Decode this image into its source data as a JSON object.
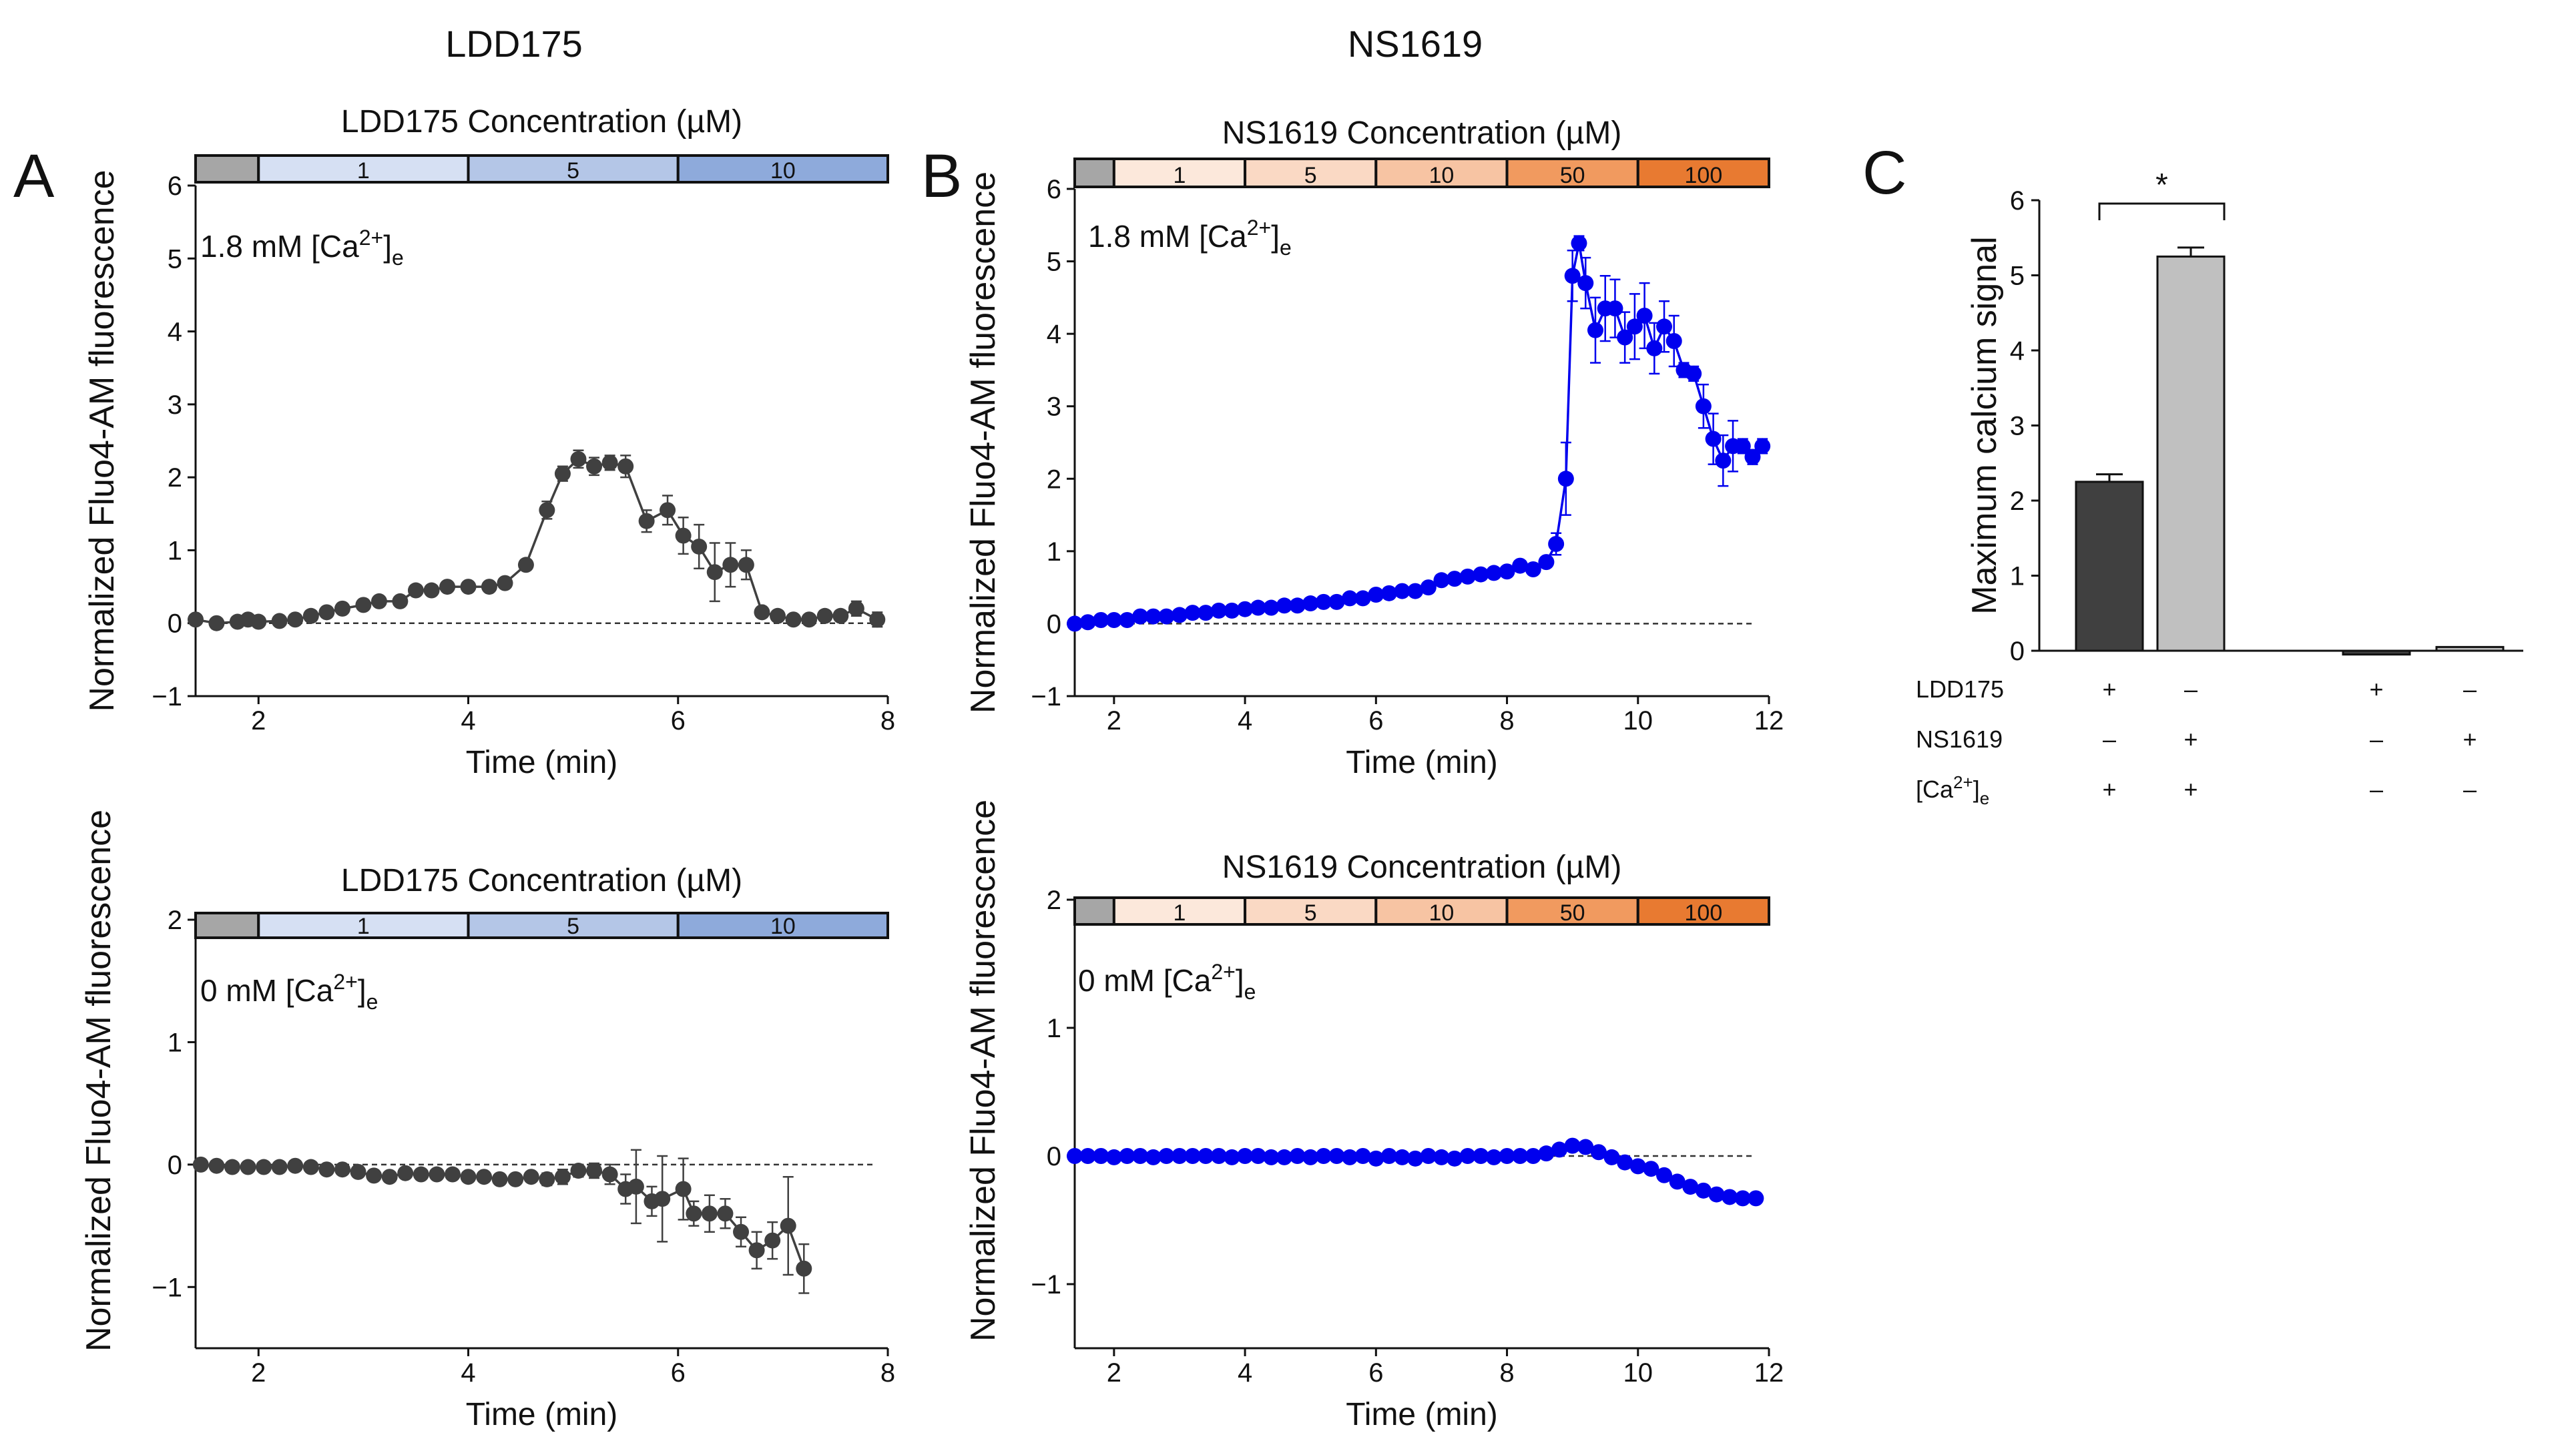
{
  "headers": {
    "ldd": "LDD175",
    "ns": "NS1619"
  },
  "letters": {
    "a": "A",
    "b": "B",
    "c": "C"
  },
  "colors": {
    "ldd": "#404040",
    "ns": "#0000ee",
    "bar_ldd": "#404040",
    "bar_ns": "#c0c0c0"
  },
  "chart_data": [
    {
      "id": "A-top",
      "type": "line",
      "title": "LDD175 Concentration (µM)",
      "xlabel": "Time (min)",
      "ylabel": "Normalized Fluo4-AM fluorescence",
      "condition": "1.8 mM [Ca²⁺]ₑ",
      "xlim": [
        1.4,
        8
      ],
      "ylim": [
        -1,
        6
      ],
      "xticks": [
        2,
        4,
        6,
        8
      ],
      "yticks": [
        -1,
        0,
        1,
        2,
        3,
        4,
        5,
        6
      ],
      "concentration_bar": {
        "segments": [
          {
            "label": "",
            "start": 1.4,
            "end": 2.0,
            "color": "#a6a6a6"
          },
          {
            "label": "1",
            "start": 2.0,
            "end": 4.0,
            "color": "#d6e0f3"
          },
          {
            "label": "5",
            "start": 4.0,
            "end": 6.0,
            "color": "#b4c6e7"
          },
          {
            "label": "10",
            "start": 6.0,
            "end": 8.0,
            "color": "#8eaadb"
          }
        ]
      },
      "series": [
        {
          "name": "LDD175",
          "color": "#404040",
          "x": [
            1.4,
            1.6,
            1.8,
            1.9,
            2.0,
            2.2,
            2.35,
            2.5,
            2.65,
            2.8,
            3.0,
            3.15,
            3.35,
            3.5,
            3.65,
            3.8,
            4.0,
            4.2,
            4.35,
            4.55,
            4.75,
            4.9,
            5.05,
            5.2,
            5.35,
            5.5,
            5.7,
            5.9,
            6.05,
            6.2,
            6.35,
            6.5,
            6.65,
            6.8,
            6.95,
            7.1,
            7.25,
            7.4,
            7.55,
            7.7,
            7.9
          ],
          "y": [
            0.05,
            0.0,
            0.02,
            0.05,
            0.02,
            0.03,
            0.05,
            0.1,
            0.15,
            0.2,
            0.25,
            0.3,
            0.3,
            0.45,
            0.45,
            0.5,
            0.5,
            0.5,
            0.55,
            0.8,
            1.55,
            2.05,
            2.25,
            2.15,
            2.2,
            2.15,
            1.4,
            1.55,
            1.2,
            1.05,
            0.7,
            0.8,
            0.8,
            0.15,
            0.1,
            0.05,
            0.05,
            0.1,
            0.1,
            0.2,
            0.05
          ],
          "err": [
            0.05,
            0.05,
            0.05,
            0.05,
            0.05,
            0.05,
            0.05,
            0.05,
            0.05,
            0.05,
            0.05,
            0.05,
            0.05,
            0.05,
            0.05,
            0.05,
            0.05,
            0.05,
            0.05,
            0.05,
            0.12,
            0.1,
            0.12,
            0.12,
            0.1,
            0.15,
            0.15,
            0.2,
            0.25,
            0.3,
            0.4,
            0.3,
            0.2,
            0.05,
            0.05,
            0.05,
            0.05,
            0.05,
            0.05,
            0.1,
            0.1
          ]
        }
      ]
    },
    {
      "id": "A-bottom",
      "type": "line",
      "title": "LDD175 Concentration (µM)",
      "xlabel": "Time (min)",
      "ylabel": "Normalized Fluo4-AM fluorescence",
      "condition": "0 mM [Ca²⁺]ₑ",
      "xlim": [
        1.4,
        8
      ],
      "ylim": [
        -1.5,
        2
      ],
      "xticks": [
        2,
        4,
        6,
        8
      ],
      "yticks": [
        -1,
        0,
        1,
        2
      ],
      "concentration_bar": {
        "segments": [
          {
            "label": "",
            "start": 1.4,
            "end": 2.0,
            "color": "#a6a6a6"
          },
          {
            "label": "1",
            "start": 2.0,
            "end": 4.0,
            "color": "#d6e0f3"
          },
          {
            "label": "5",
            "start": 4.0,
            "end": 6.0,
            "color": "#b4c6e7"
          },
          {
            "label": "10",
            "start": 6.0,
            "end": 8.0,
            "color": "#8eaadb"
          }
        ]
      },
      "series": [
        {
          "name": "LDD175",
          "color": "#404040",
          "x": [
            1.45,
            1.6,
            1.75,
            1.9,
            2.05,
            2.2,
            2.35,
            2.5,
            2.65,
            2.8,
            2.95,
            3.1,
            3.25,
            3.4,
            3.55,
            3.7,
            3.85,
            4.0,
            4.15,
            4.3,
            4.45,
            4.6,
            4.75,
            4.9,
            5.05,
            5.2,
            5.35,
            5.5,
            5.6,
            5.75,
            5.85,
            6.05,
            6.15,
            6.3,
            6.45,
            6.6,
            6.75,
            6.9,
            7.05,
            7.2
          ],
          "y": [
            0.0,
            -0.01,
            -0.02,
            -0.02,
            -0.02,
            -0.02,
            -0.01,
            -0.02,
            -0.04,
            -0.04,
            -0.06,
            -0.09,
            -0.1,
            -0.07,
            -0.08,
            -0.08,
            -0.08,
            -0.1,
            -0.1,
            -0.12,
            -0.12,
            -0.1,
            -0.12,
            -0.1,
            -0.05,
            -0.05,
            -0.08,
            -0.2,
            -0.18,
            -0.3,
            -0.28,
            -0.2,
            -0.4,
            -0.4,
            -0.4,
            -0.55,
            -0.7,
            -0.62,
            -0.5,
            -0.85
          ],
          "err": [
            0.03,
            0.03,
            0.03,
            0.03,
            0.03,
            0.03,
            0.03,
            0.03,
            0.03,
            0.03,
            0.03,
            0.03,
            0.03,
            0.03,
            0.03,
            0.03,
            0.03,
            0.03,
            0.03,
            0.03,
            0.04,
            0.04,
            0.05,
            0.06,
            0.05,
            0.06,
            0.08,
            0.12,
            0.3,
            0.12,
            0.35,
            0.25,
            0.1,
            0.15,
            0.12,
            0.12,
            0.15,
            0.15,
            0.4,
            0.2
          ]
        }
      ]
    },
    {
      "id": "B-top",
      "type": "line",
      "title": "NS1619 Concentration (µM)",
      "xlabel": "Time (min)",
      "ylabel": "Normalized Fluo4-AM fluorescence",
      "condition": "1.8 mM [Ca²⁺]ₑ",
      "xlim": [
        1.4,
        12
      ],
      "ylim": [
        -1,
        6
      ],
      "xticks": [
        2,
        4,
        6,
        8,
        10,
        12
      ],
      "yticks": [
        -1,
        0,
        1,
        2,
        3,
        4,
        5,
        6
      ],
      "concentration_bar": {
        "segments": [
          {
            "label": "",
            "start": 1.4,
            "end": 2.0,
            "color": "#a6a6a6"
          },
          {
            "label": "1",
            "start": 2.0,
            "end": 4.0,
            "color": "#fce8db"
          },
          {
            "label": "5",
            "start": 4.0,
            "end": 6.0,
            "color": "#fad9c4"
          },
          {
            "label": "10",
            "start": 6.0,
            "end": 8.0,
            "color": "#f7c4a3"
          },
          {
            "label": "50",
            "start": 8.0,
            "end": 10.0,
            "color": "#f19a5f"
          },
          {
            "label": "100",
            "start": 10.0,
            "end": 12.0,
            "color": "#e87a31"
          }
        ]
      },
      "series": [
        {
          "name": "NS1619",
          "color": "#0000ee",
          "x": [
            1.4,
            1.6,
            1.8,
            2.0,
            2.2,
            2.4,
            2.6,
            2.8,
            3.0,
            3.2,
            3.4,
            3.6,
            3.8,
            4.0,
            4.2,
            4.4,
            4.6,
            4.8,
            5.0,
            5.2,
            5.4,
            5.6,
            5.8,
            6.0,
            6.2,
            6.4,
            6.6,
            6.8,
            7.0,
            7.2,
            7.4,
            7.6,
            7.8,
            8.0,
            8.2,
            8.4,
            8.6,
            8.75,
            8.9,
            9.0,
            9.1,
            9.2,
            9.35,
            9.5,
            9.65,
            9.8,
            9.95,
            10.1,
            10.25,
            10.4,
            10.55,
            10.7,
            10.85,
            11.0,
            11.15,
            11.3,
            11.45,
            11.6,
            11.75,
            11.9
          ],
          "y": [
            0.0,
            0.02,
            0.05,
            0.05,
            0.05,
            0.1,
            0.1,
            0.1,
            0.12,
            0.15,
            0.15,
            0.18,
            0.18,
            0.2,
            0.22,
            0.22,
            0.25,
            0.25,
            0.28,
            0.3,
            0.3,
            0.35,
            0.35,
            0.4,
            0.42,
            0.45,
            0.45,
            0.5,
            0.6,
            0.62,
            0.65,
            0.68,
            0.7,
            0.72,
            0.8,
            0.75,
            0.85,
            1.1,
            2.0,
            4.8,
            5.25,
            4.7,
            4.05,
            4.35,
            4.35,
            3.95,
            4.1,
            4.25,
            3.8,
            4.1,
            3.9,
            3.5,
            3.45,
            3.0,
            2.55,
            2.25,
            2.45,
            2.45,
            2.3,
            2.45
          ],
          "err": [
            0.03,
            0.03,
            0.03,
            0.03,
            0.03,
            0.03,
            0.03,
            0.03,
            0.03,
            0.03,
            0.03,
            0.03,
            0.03,
            0.03,
            0.03,
            0.03,
            0.03,
            0.03,
            0.03,
            0.03,
            0.03,
            0.03,
            0.03,
            0.03,
            0.03,
            0.03,
            0.03,
            0.03,
            0.03,
            0.03,
            0.03,
            0.03,
            0.03,
            0.03,
            0.03,
            0.03,
            0.05,
            0.15,
            0.5,
            0.35,
            0.1,
            0.35,
            0.45,
            0.45,
            0.4,
            0.35,
            0.45,
            0.45,
            0.35,
            0.35,
            0.35,
            0.1,
            0.1,
            0.3,
            0.35,
            0.35,
            0.35,
            0.1,
            0.1,
            0.1
          ]
        }
      ]
    },
    {
      "id": "B-bottom",
      "type": "line",
      "title": "NS1619 Concentration (µM)",
      "xlabel": "Time (min)",
      "ylabel": "Normalized Fluo4-AM fluorescence",
      "condition": "0 mM [Ca²⁺]ₑ",
      "xlim": [
        1.4,
        12
      ],
      "ylim": [
        -1.5,
        2
      ],
      "xticks": [
        2,
        4,
        6,
        8,
        10,
        12
      ],
      "yticks": [
        -1,
        0,
        1,
        2
      ],
      "concentration_bar": {
        "segments": [
          {
            "label": "",
            "start": 1.4,
            "end": 2.0,
            "color": "#a6a6a6"
          },
          {
            "label": "1",
            "start": 2.0,
            "end": 4.0,
            "color": "#fce8db"
          },
          {
            "label": "5",
            "start": 4.0,
            "end": 6.0,
            "color": "#fad9c4"
          },
          {
            "label": "10",
            "start": 6.0,
            "end": 8.0,
            "color": "#f7c4a3"
          },
          {
            "label": "50",
            "start": 8.0,
            "end": 10.0,
            "color": "#f19a5f"
          },
          {
            "label": "100",
            "start": 10.0,
            "end": 12.0,
            "color": "#e87a31"
          }
        ]
      },
      "series": [
        {
          "name": "NS1619",
          "color": "#0000ee",
          "x": [
            1.4,
            1.6,
            1.8,
            2.0,
            2.2,
            2.4,
            2.6,
            2.8,
            3.0,
            3.2,
            3.4,
            3.6,
            3.8,
            4.0,
            4.2,
            4.4,
            4.6,
            4.8,
            5.0,
            5.2,
            5.4,
            5.6,
            5.8,
            6.0,
            6.2,
            6.4,
            6.6,
            6.8,
            7.0,
            7.2,
            7.4,
            7.6,
            7.8,
            8.0,
            8.2,
            8.4,
            8.6,
            8.8,
            9.0,
            9.2,
            9.4,
            9.6,
            9.8,
            10.0,
            10.2,
            10.4,
            10.6,
            10.8,
            11.0,
            11.2,
            11.4,
            11.6,
            11.8
          ],
          "y": [
            0.0,
            0.0,
            0.0,
            -0.01,
            0.0,
            0.0,
            -0.01,
            0.0,
            0.0,
            0.0,
            0.0,
            0.0,
            -0.01,
            0.0,
            0.0,
            -0.01,
            -0.01,
            0.0,
            -0.01,
            0.0,
            0.0,
            -0.01,
            0.0,
            -0.02,
            0.0,
            -0.01,
            -0.02,
            0.0,
            -0.01,
            -0.02,
            0.0,
            0.0,
            -0.01,
            0.0,
            0.0,
            0.0,
            0.02,
            0.05,
            0.08,
            0.07,
            0.03,
            -0.01,
            -0.05,
            -0.08,
            -0.1,
            -0.15,
            -0.2,
            -0.24,
            -0.27,
            -0.3,
            -0.32,
            -0.33,
            -0.33
          ],
          "err": []
        }
      ]
    },
    {
      "id": "C",
      "type": "bar",
      "ylabel": "Maximum calcium signal",
      "ylim": [
        0,
        6
      ],
      "yticks": [
        0,
        1,
        2,
        3,
        4,
        5,
        6
      ],
      "bars": [
        {
          "value": 2.25,
          "err": 0.1,
          "color": "#404040"
        },
        {
          "value": 5.25,
          "err": 0.12,
          "color": "#c0c0c0"
        },
        {
          "value": -0.05,
          "err": 0.0,
          "color": "#404040"
        },
        {
          "value": 0.05,
          "err": 0.0,
          "color": "#c0c0c0"
        }
      ],
      "significance": {
        "pair": [
          0,
          1
        ],
        "label": "*"
      },
      "treatments": [
        {
          "label": "LDD175",
          "signs": [
            "+",
            "–",
            "+",
            "–"
          ]
        },
        {
          "label": "NS1619",
          "signs": [
            "–",
            "+",
            "–",
            "+"
          ]
        },
        {
          "label": "[Ca²⁺]ₑ",
          "signs": [
            "+",
            "+",
            "–",
            "–"
          ]
        }
      ]
    }
  ]
}
